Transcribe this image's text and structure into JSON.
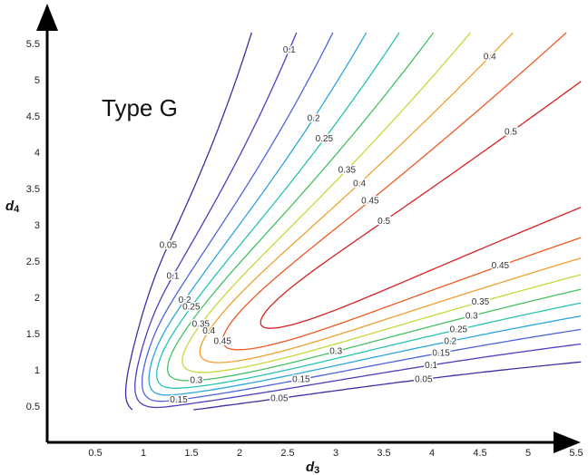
{
  "chart_data": {
    "type": "contour",
    "title": "Type G",
    "xlabel": {
      "main": "d",
      "sub": "3"
    },
    "ylabel": {
      "main": "d",
      "sub": "4"
    },
    "xlim": [
      0,
      5.5
    ],
    "ylim": [
      0,
      5.5
    ],
    "x_ticks": [
      "0.5",
      "1",
      "1.5",
      "2",
      "2.5",
      "3",
      "3.5",
      "4",
      "4.5",
      "5",
      "5.5"
    ],
    "y_ticks": [
      "0.5",
      "1",
      "1.5",
      "2",
      "2.5",
      "3",
      "3.5",
      "4",
      "4.5",
      "5",
      "5.5"
    ],
    "grid": false,
    "levels": [
      {
        "value": 0.05,
        "label": "0.05",
        "color": "#3b2fa0"
      },
      {
        "value": 0.1,
        "label": "0.1",
        "color": "#4b3fc0"
      },
      {
        "value": 0.15,
        "label": "0.15",
        "color": "#4f63dc"
      },
      {
        "value": 0.2,
        "label": "0.2",
        "color": "#2aa6e0"
      },
      {
        "value": 0.25,
        "label": "0.25",
        "color": "#27c3b0"
      },
      {
        "value": 0.3,
        "label": "0.3",
        "color": "#45c060"
      },
      {
        "value": 0.35,
        "label": "0.35",
        "color": "#c8d83a"
      },
      {
        "value": 0.4,
        "label": "0.4",
        "color": "#f0a030"
      },
      {
        "value": 0.45,
        "label": "0.45",
        "color": "#ec5a22"
      },
      {
        "value": 0.5,
        "label": "0.5",
        "color": "#d42020"
      }
    ]
  }
}
